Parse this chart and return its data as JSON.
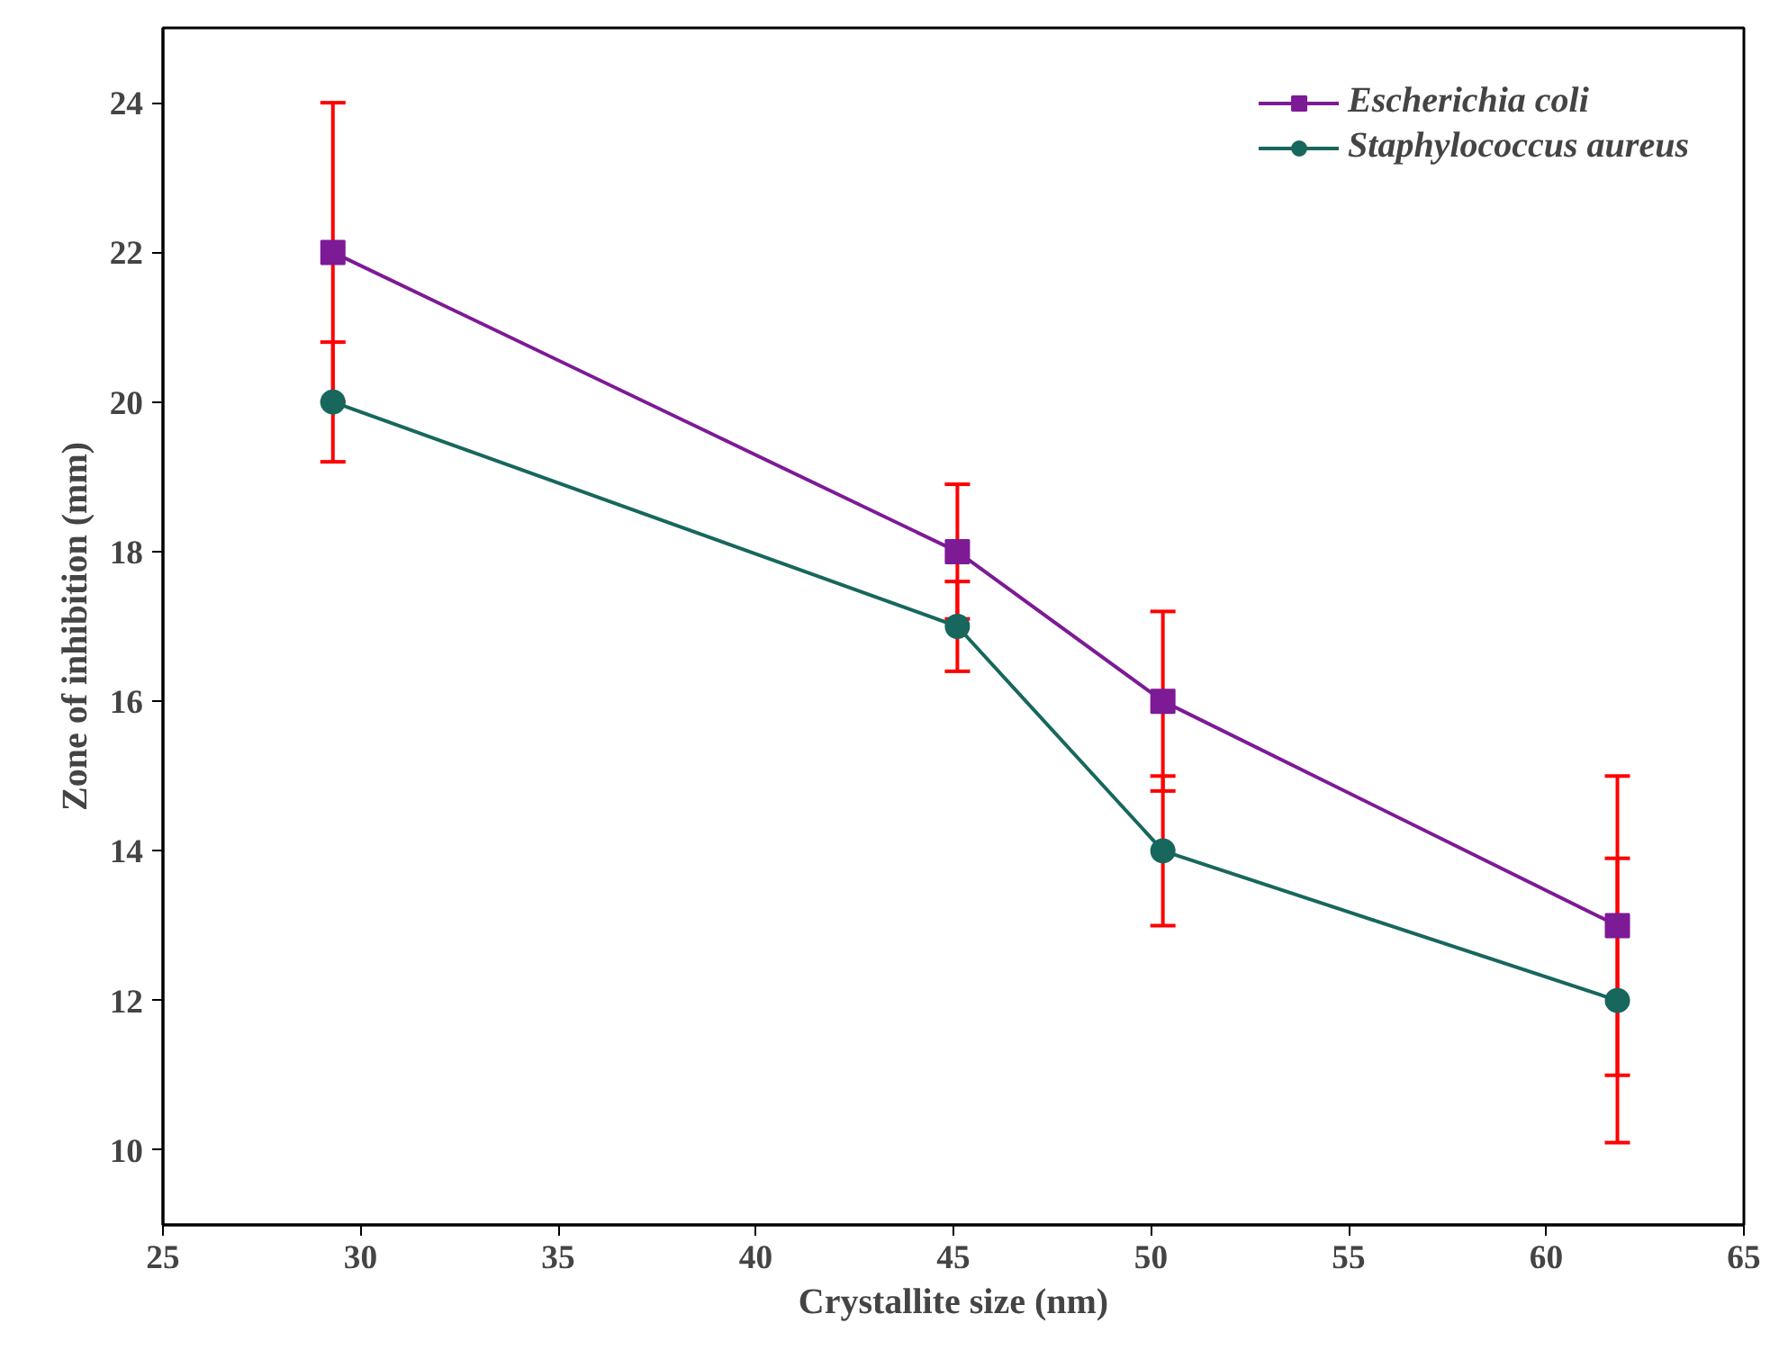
{
  "chart_data": {
    "type": "line",
    "xlabel": "Crystallite size (nm)",
    "ylabel": "Zone of inhibition (mm)",
    "x": [
      29.3,
      45.1,
      50.3,
      61.8
    ],
    "xlim": [
      25,
      65
    ],
    "xticks": [
      25,
      30,
      35,
      40,
      45,
      50,
      55,
      60,
      65
    ],
    "ylim": [
      9,
      25
    ],
    "yticks": [
      10,
      12,
      14,
      16,
      18,
      20,
      22,
      24
    ],
    "series": [
      {
        "name": "Escherichia coli",
        "color": "#7d1a96",
        "values": [
          22,
          18,
          16,
          13
        ],
        "errors": [
          2,
          0.9,
          1.2,
          2
        ],
        "marker": "square"
      },
      {
        "name": "Staphylococcus aureus",
        "color": "#17675d",
        "values": [
          20,
          17,
          14,
          12
        ],
        "errors": [
          0.8,
          0.6,
          1,
          1.9
        ],
        "marker": "circle"
      }
    ],
    "grid": false,
    "legend": "top right",
    "line_style": "solid"
  }
}
